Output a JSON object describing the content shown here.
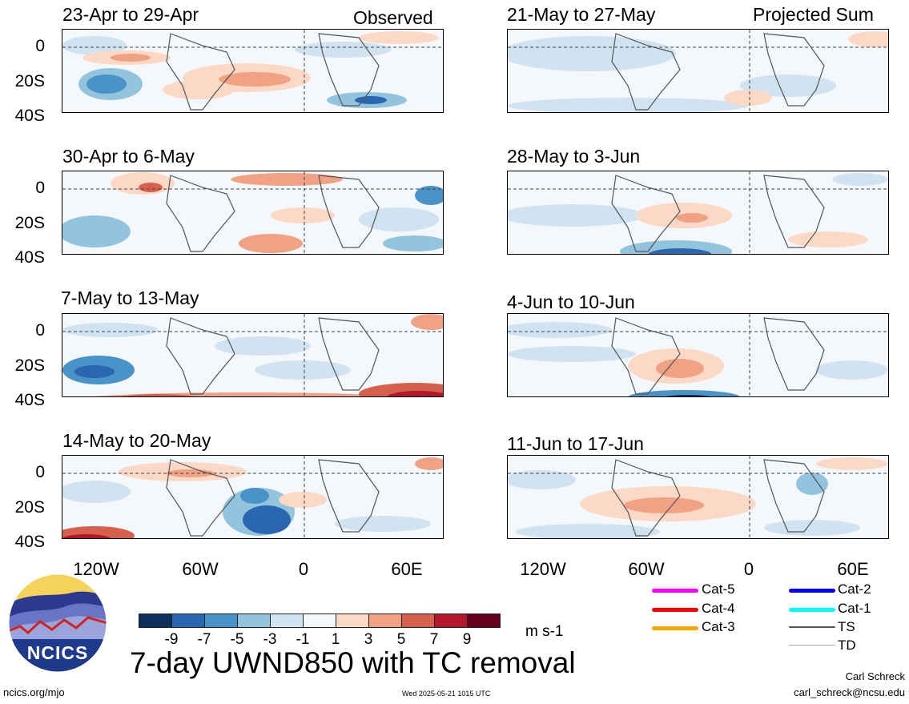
{
  "header": {
    "observed_label": "Observed",
    "projected_label": "Projected Sum"
  },
  "panels": [
    {
      "title": "23-Apr to 29-Apr"
    },
    {
      "title": "30-Apr to 6-May"
    },
    {
      "title": "7-May to 13-May"
    },
    {
      "title": "14-May to 20-May"
    },
    {
      "title": "21-May to 27-May"
    },
    {
      "title": "28-May to 3-Jun"
    },
    {
      "title": "4-Jun to 10-Jun"
    },
    {
      "title": "11-Jun to 17-Jun"
    }
  ],
  "lat_labels": [
    "0",
    "20S",
    "40S"
  ],
  "lon_labels": [
    "120W",
    "60W",
    "0",
    "60E"
  ],
  "colorbar": {
    "colors": [
      "#0d2f5c",
      "#2a67b0",
      "#4a93c8",
      "#92c4de",
      "#cfe4f0",
      "#f4f8fb",
      "#fcd9c6",
      "#f1a184",
      "#d6604d",
      "#b2182b",
      "#67001f"
    ],
    "ticks": [
      "-9",
      "-7",
      "-5",
      "-3",
      "-1",
      "1",
      "3",
      "5",
      "7",
      "9"
    ],
    "units": "m s-1"
  },
  "main_title": "7-day UWND850 with TC removal",
  "legend": [
    {
      "label": "Cat-5",
      "color": "#ff00ff"
    },
    {
      "label": "Cat-4",
      "color": "#ff0000"
    },
    {
      "label": "Cat-3",
      "color": "#ffa500"
    },
    {
      "label": "Cat-2",
      "color": "#0000ff"
    },
    {
      "label": "Cat-1",
      "color": "#00ffff"
    },
    {
      "label": "TS",
      "color": "#555555"
    },
    {
      "label": "TD",
      "color": "#aaaaaa"
    }
  ],
  "logo": {
    "text": "NCICS"
  },
  "footer": {
    "url": "ncics.org/mjo",
    "timestamp": "Wed 2025-05-21 1015 UTC",
    "author": "Carl Schreck",
    "email": "carl_schreck@ncsu.edu"
  }
}
